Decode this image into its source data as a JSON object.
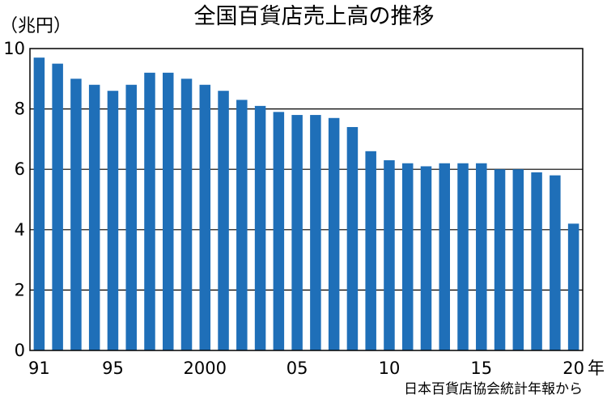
{
  "chart_data": {
    "type": "bar",
    "title": "全国百貨店売上高の推移",
    "ylabel": "（兆円）",
    "xlabel": "年",
    "source": "日本百貨店協会統計年報から",
    "ylim": [
      0,
      10
    ],
    "yticks": [
      "0",
      "2",
      "4",
      "6",
      "8",
      "10"
    ],
    "xtick_labels": [
      {
        "index": 0,
        "label": "91"
      },
      {
        "index": 4,
        "label": "95"
      },
      {
        "index": 9,
        "label": "2000"
      },
      {
        "index": 14,
        "label": "05"
      },
      {
        "index": 19,
        "label": "10"
      },
      {
        "index": 24,
        "label": "15"
      },
      {
        "index": 29,
        "label": "20"
      }
    ],
    "grid": true,
    "bar_color": "#1f6fb8",
    "categories": [
      "1991",
      "1992",
      "1993",
      "1994",
      "1995",
      "1996",
      "1997",
      "1998",
      "1999",
      "2000",
      "2001",
      "2002",
      "2003",
      "2004",
      "2005",
      "2006",
      "2007",
      "2008",
      "2009",
      "2010",
      "2011",
      "2012",
      "2013",
      "2014",
      "2015",
      "2016",
      "2017",
      "2018",
      "2019",
      "2020"
    ],
    "values": [
      9.7,
      9.5,
      9.0,
      8.8,
      8.6,
      8.8,
      9.2,
      9.2,
      9.0,
      8.8,
      8.6,
      8.3,
      8.1,
      7.9,
      7.8,
      7.8,
      7.7,
      7.4,
      6.6,
      6.3,
      6.2,
      6.1,
      6.2,
      6.2,
      6.2,
      6.0,
      6.0,
      5.9,
      5.8,
      4.2
    ]
  }
}
